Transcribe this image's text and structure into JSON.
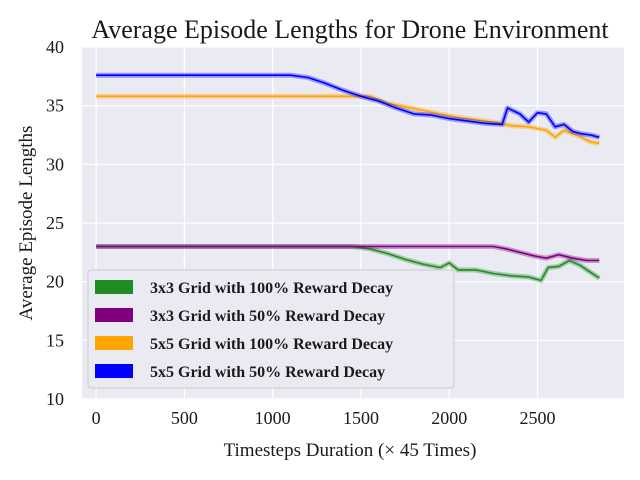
{
  "chart_data": {
    "type": "line",
    "title": "Average Episode Lengths for Drone Environment",
    "xlabel": "Timesteps Duration (× 45 Times)",
    "ylabel": "Average Episode Lengths",
    "xlim": [
      -80,
      2990
    ],
    "ylim": [
      10,
      40
    ],
    "xticks": [
      0,
      500,
      1000,
      1500,
      2000,
      2500
    ],
    "yticks": [
      10,
      15,
      20,
      25,
      30,
      35,
      40
    ],
    "grid": true,
    "background": "#eaeaf2",
    "legend_position": "lower-left",
    "series": [
      {
        "name": "3x3 Grid with 100% Reward Decay",
        "color": "#228b22",
        "points": [
          [
            0,
            23.0
          ],
          [
            300,
            23.0
          ],
          [
            600,
            23.0
          ],
          [
            900,
            23.0
          ],
          [
            1200,
            23.0
          ],
          [
            1450,
            23.0
          ],
          [
            1550,
            22.8
          ],
          [
            1650,
            22.4
          ],
          [
            1750,
            21.9
          ],
          [
            1850,
            21.5
          ],
          [
            1950,
            21.2
          ],
          [
            2000,
            21.6
          ],
          [
            2050,
            21.0
          ],
          [
            2150,
            21.0
          ],
          [
            2250,
            20.7
          ],
          [
            2350,
            20.5
          ],
          [
            2450,
            20.4
          ],
          [
            2520,
            20.1
          ],
          [
            2560,
            21.2
          ],
          [
            2620,
            21.3
          ],
          [
            2680,
            21.8
          ],
          [
            2740,
            21.4
          ],
          [
            2800,
            20.8
          ],
          [
            2850,
            20.3
          ]
        ]
      },
      {
        "name": "3x3 Grid with 50% Reward Decay",
        "color": "#800080",
        "points": [
          [
            0,
            23.0
          ],
          [
            300,
            23.0
          ],
          [
            600,
            23.0
          ],
          [
            900,
            23.0
          ],
          [
            1200,
            23.0
          ],
          [
            1500,
            23.0
          ],
          [
            1800,
            23.0
          ],
          [
            2100,
            23.0
          ],
          [
            2250,
            23.0
          ],
          [
            2320,
            22.8
          ],
          [
            2400,
            22.5
          ],
          [
            2480,
            22.2
          ],
          [
            2550,
            22.0
          ],
          [
            2620,
            22.3
          ],
          [
            2700,
            22.0
          ],
          [
            2780,
            21.8
          ],
          [
            2850,
            21.8
          ]
        ]
      },
      {
        "name": "5x5 Grid with 100% Reward Decay",
        "color": "#ffa500",
        "points": [
          [
            0,
            35.8
          ],
          [
            300,
            35.8
          ],
          [
            600,
            35.8
          ],
          [
            900,
            35.8
          ],
          [
            1200,
            35.8
          ],
          [
            1450,
            35.8
          ],
          [
            1550,
            35.8
          ],
          [
            1650,
            35.2
          ],
          [
            1750,
            34.9
          ],
          [
            1850,
            34.6
          ],
          [
            1950,
            34.3
          ],
          [
            2050,
            34.0
          ],
          [
            2150,
            33.8
          ],
          [
            2250,
            33.6
          ],
          [
            2350,
            33.3
          ],
          [
            2450,
            33.2
          ],
          [
            2550,
            32.9
          ],
          [
            2600,
            32.3
          ],
          [
            2650,
            32.9
          ],
          [
            2700,
            32.6
          ],
          [
            2750,
            32.3
          ],
          [
            2800,
            31.9
          ],
          [
            2850,
            31.8
          ]
        ]
      },
      {
        "name": "5x5 Grid with 50% Reward Decay",
        "color": "#0000ff",
        "points": [
          [
            0,
            37.6
          ],
          [
            300,
            37.6
          ],
          [
            600,
            37.6
          ],
          [
            900,
            37.6
          ],
          [
            1100,
            37.6
          ],
          [
            1200,
            37.4
          ],
          [
            1300,
            36.9
          ],
          [
            1400,
            36.3
          ],
          [
            1500,
            35.8
          ],
          [
            1600,
            35.4
          ],
          [
            1700,
            34.8
          ],
          [
            1800,
            34.3
          ],
          [
            1900,
            34.2
          ],
          [
            2000,
            33.9
          ],
          [
            2100,
            33.7
          ],
          [
            2200,
            33.5
          ],
          [
            2300,
            33.4
          ],
          [
            2330,
            34.8
          ],
          [
            2400,
            34.3
          ],
          [
            2450,
            33.6
          ],
          [
            2500,
            34.4
          ],
          [
            2550,
            34.3
          ],
          [
            2600,
            33.2
          ],
          [
            2650,
            33.4
          ],
          [
            2700,
            32.8
          ],
          [
            2750,
            32.6
          ],
          [
            2800,
            32.5
          ],
          [
            2850,
            32.3
          ]
        ]
      }
    ]
  }
}
